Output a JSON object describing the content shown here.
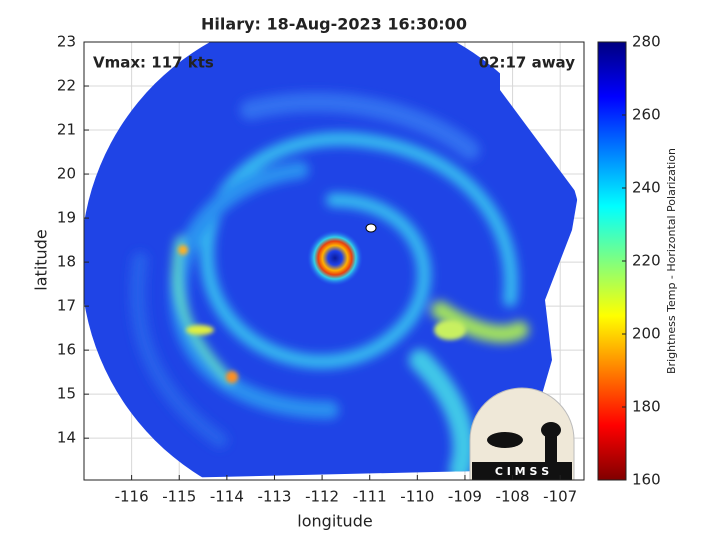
{
  "chart_data": {
    "type": "heatmap",
    "title": "Hilary: 18-Aug-2023 16:30:00",
    "annotations": [
      "Vmax: 117 kts",
      "02:17 away"
    ],
    "xlabel": "longitude",
    "ylabel": "latitude",
    "xlim": [
      -117,
      -106.5
    ],
    "ylim": [
      13.05,
      23
    ],
    "xticks": [
      -116,
      -115,
      -114,
      -113,
      -112,
      -111,
      -110,
      -109,
      -108,
      -107
    ],
    "yticks": [
      14,
      15,
      16,
      17,
      18,
      19,
      20,
      21,
      22,
      23
    ],
    "grid": true,
    "colorbar": {
      "label": "Brightness Temp - Horizontal Polarization",
      "lim": [
        160,
        280
      ],
      "ticks": [
        160,
        180,
        200,
        220,
        240,
        260,
        280
      ],
      "colormap": "jet"
    },
    "logo": "C I M S S"
  }
}
